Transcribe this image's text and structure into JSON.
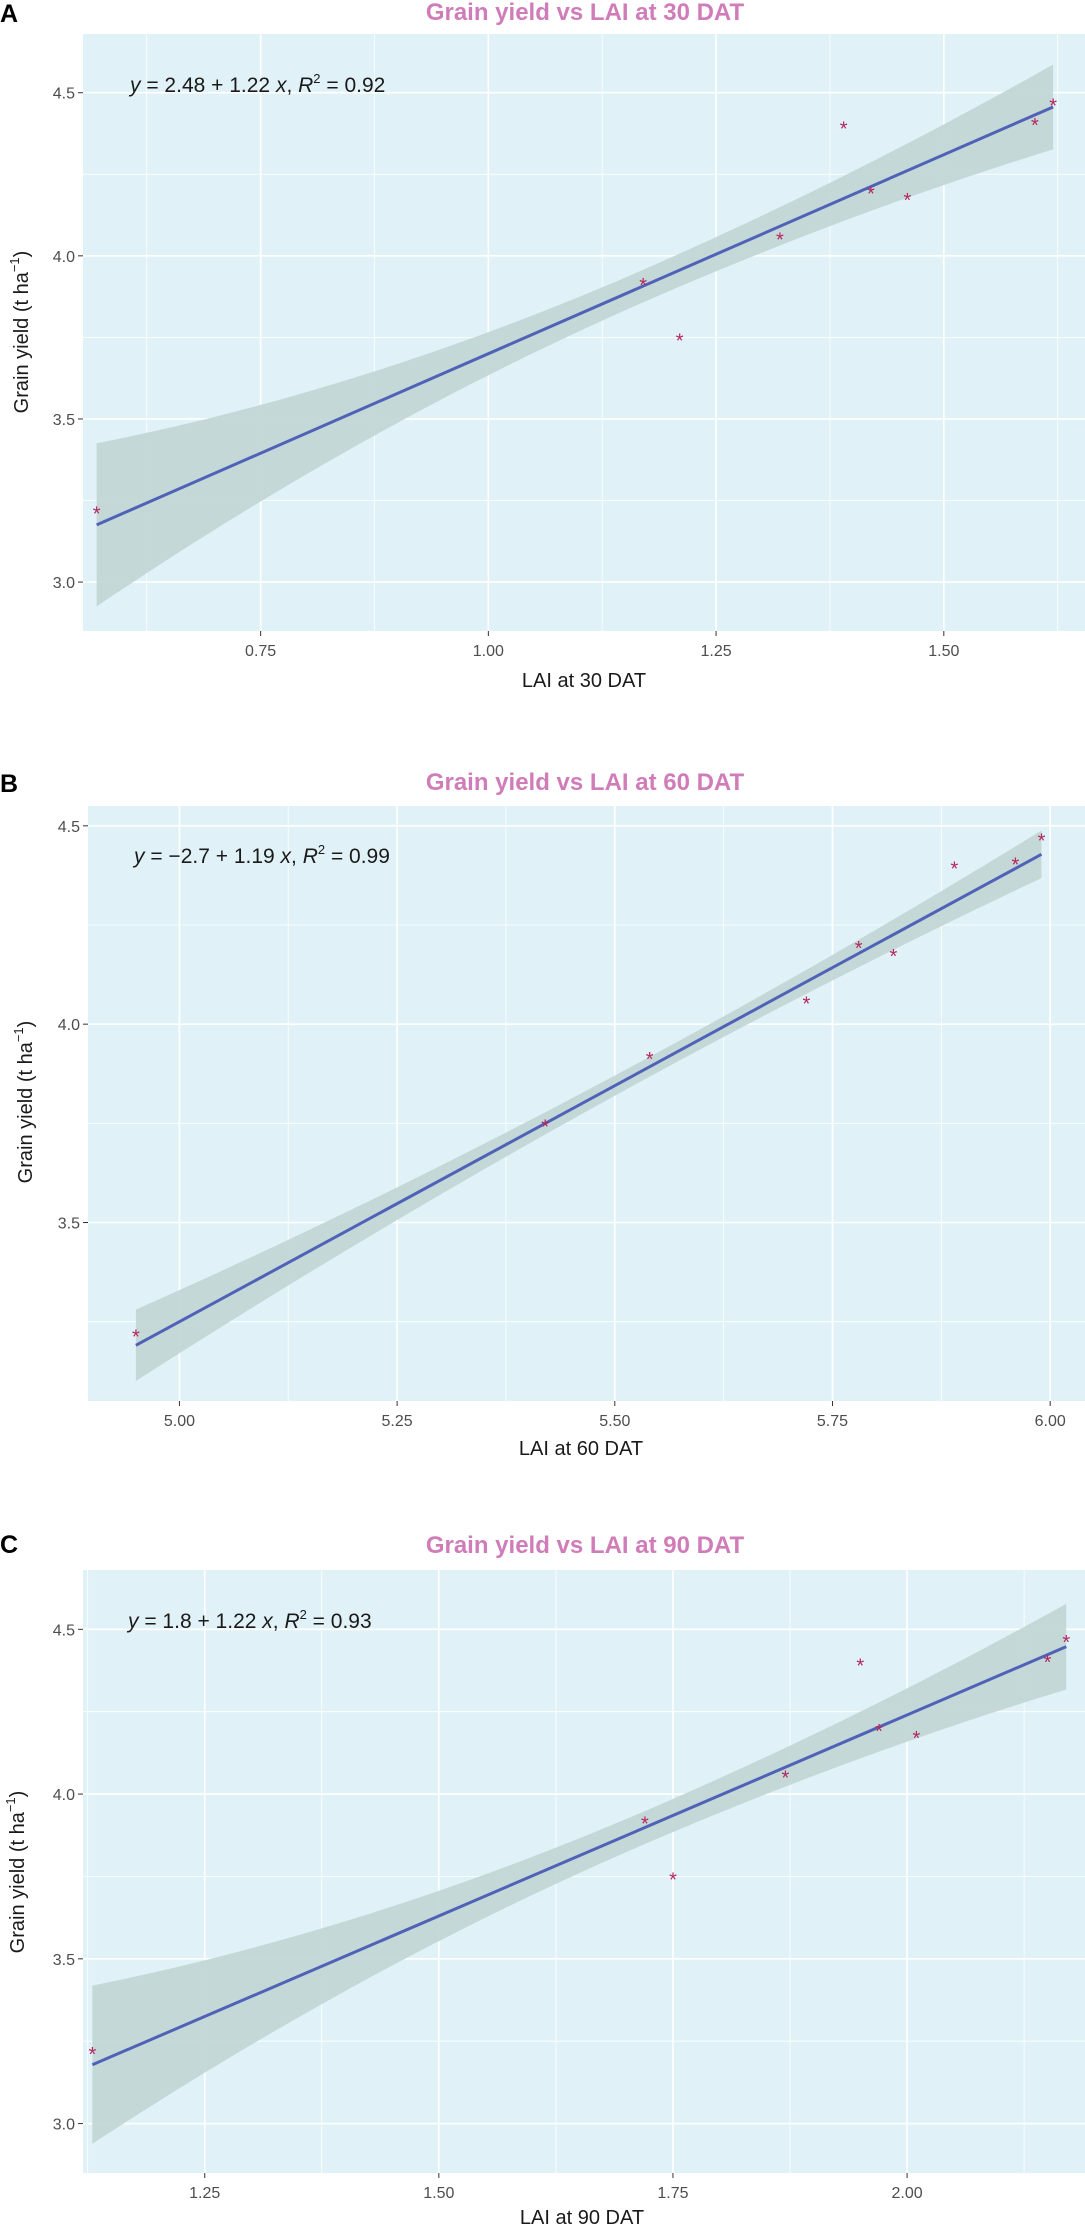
{
  "colors": {
    "panel_bg": "#e0f2f7",
    "grid": "#ffffff",
    "band": "#c3d6d6",
    "line": "#4f62b7",
    "point": "#b5265f",
    "title": "#d07cb9"
  },
  "chart_data": [
    {
      "type": "scatter",
      "panel": "A",
      "title": "Grain yield vs LAI at 30 DAT",
      "xlabel": "LAI at 30 DAT",
      "ylabel": "Grain yield (t ha",
      "ylabel_sup": "−1",
      "ylabel_close": ")",
      "equation": {
        "y": "y",
        "eq": " = 2.48 + 1.22 ",
        "x": "x",
        "comma": ", ",
        "R": "R",
        "sup": "2",
        "rest": " = 0.92"
      },
      "xlim": [
        0.555,
        1.655
      ],
      "ylim": [
        2.85,
        4.68
      ],
      "xticks": [
        0.75,
        1.0,
        1.25,
        1.5
      ],
      "xtick_labels": [
        "0.75",
        "1.00",
        "1.25",
        "1.50"
      ],
      "yticks": [
        3.0,
        3.5,
        4.0,
        4.5
      ],
      "ytick_labels": [
        "3.0",
        "3.5",
        "4.0",
        "4.5"
      ],
      "fit": {
        "intercept": 2.48,
        "slope": 1.22,
        "x_range": [
          0.57,
          1.62
        ],
        "ci_start": 0.25,
        "ci_mid": 0.05,
        "ci_end": 0.13,
        "ci_center": 1.17
      },
      "points": [
        {
          "x": 0.57,
          "y": 3.22,
          "marker": "*"
        },
        {
          "x": 1.17,
          "y": 3.92,
          "marker": "*"
        },
        {
          "x": 1.21,
          "y": 3.75,
          "marker": "*"
        },
        {
          "x": 1.32,
          "y": 4.06,
          "marker": "*"
        },
        {
          "x": 1.39,
          "y": 4.4,
          "marker": "*"
        },
        {
          "x": 1.42,
          "y": 4.2,
          "marker": "*"
        },
        {
          "x": 1.46,
          "y": 4.18,
          "marker": "*"
        },
        {
          "x": 1.6,
          "y": 4.41,
          "marker": "*"
        },
        {
          "x": 1.62,
          "y": 4.47,
          "marker": "*"
        }
      ]
    },
    {
      "type": "scatter",
      "panel": "B",
      "title": "Grain yield vs LAI at 60 DAT",
      "xlabel": "LAI at 60 DAT",
      "ylabel": "Grain yield (t ha",
      "ylabel_sup": "−1",
      "ylabel_close": ")",
      "equation": {
        "y": "y",
        "eq": " = −2.7 + 1.19 ",
        "x": "x",
        "comma": ", ",
        "R": "R",
        "sup": "2",
        "rest": " = 0.99"
      },
      "xlim": [
        4.895,
        6.04
      ],
      "ylim": [
        3.05,
        4.55
      ],
      "xticks": [
        5.0,
        5.25,
        5.5,
        5.75,
        6.0
      ],
      "xtick_labels": [
        "5.00",
        "5.25",
        "5.50",
        "5.75",
        "6.00"
      ],
      "yticks": [
        3.5,
        4.0,
        4.5
      ],
      "ytick_labels": [
        "3.5",
        "4.0",
        "4.5"
      ],
      "fit": {
        "intercept": -2.7,
        "slope": 1.19,
        "x_range": [
          4.95,
          5.99
        ],
        "ci_start": 0.09,
        "ci_mid": 0.025,
        "ci_end": 0.06,
        "ci_center": 5.55
      },
      "points": [
        {
          "x": 4.95,
          "y": 3.22,
          "marker": "*"
        },
        {
          "x": 5.42,
          "y": 3.75,
          "marker": "*"
        },
        {
          "x": 5.54,
          "y": 3.92,
          "marker": "*"
        },
        {
          "x": 5.72,
          "y": 4.06,
          "marker": "*"
        },
        {
          "x": 5.78,
          "y": 4.2,
          "marker": "*"
        },
        {
          "x": 5.82,
          "y": 4.18,
          "marker": "*"
        },
        {
          "x": 5.89,
          "y": 4.4,
          "marker": "*"
        },
        {
          "x": 5.96,
          "y": 4.41,
          "marker": "*"
        },
        {
          "x": 5.99,
          "y": 4.47,
          "marker": "*"
        }
      ]
    },
    {
      "type": "scatter",
      "panel": "C",
      "title": "Grain yield vs LAI at 90 DAT",
      "xlabel": "LAI at 90 DAT",
      "ylabel": "Grain yield (t ha",
      "ylabel_sup": "−1",
      "ylabel_close": ")",
      "equation": {
        "y": "y",
        "eq": " = 1.8 + 1.22 ",
        "x": "x",
        "comma": ", ",
        "R": "R",
        "sup": "2",
        "rest": " = 0.93"
      },
      "xlim": [
        1.12,
        2.19
      ],
      "ylim": [
        2.85,
        4.68
      ],
      "xticks": [
        1.25,
        1.5,
        1.75,
        2.0
      ],
      "xtick_labels": [
        "1.25",
        "1.50",
        "1.75",
        "2.00"
      ],
      "yticks": [
        3.0,
        3.5,
        4.0,
        4.5
      ],
      "ytick_labels": [
        "3.0",
        "3.5",
        "4.0",
        "4.5"
      ],
      "fit": {
        "intercept": 1.8,
        "slope": 1.22,
        "x_range": [
          1.13,
          2.17
        ],
        "ci_start": 0.24,
        "ci_mid": 0.05,
        "ci_end": 0.13,
        "ci_center": 1.72
      },
      "points": [
        {
          "x": 1.13,
          "y": 3.22,
          "marker": "*"
        },
        {
          "x": 1.72,
          "y": 3.92,
          "marker": "*"
        },
        {
          "x": 1.75,
          "y": 3.75,
          "marker": "*"
        },
        {
          "x": 1.87,
          "y": 4.06,
          "marker": "*"
        },
        {
          "x": 1.95,
          "y": 4.4,
          "marker": "*"
        },
        {
          "x": 1.97,
          "y": 4.2,
          "marker": "*"
        },
        {
          "x": 2.01,
          "y": 4.18,
          "marker": "*"
        },
        {
          "x": 2.15,
          "y": 4.41,
          "marker": "*"
        },
        {
          "x": 2.17,
          "y": 4.47,
          "marker": "*"
        }
      ]
    }
  ]
}
